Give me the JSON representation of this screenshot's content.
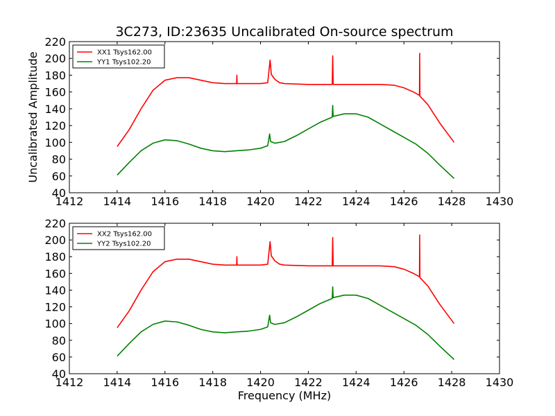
{
  "figure": {
    "title": "3C273, ID:23635 Uncalibrated On-source spectrum",
    "ylabel": "Uncalibrated Amplitude",
    "xlabel": "Frequency (MHz)"
  },
  "colors": {
    "xx": "#ff0000",
    "yy": "#008000",
    "axes": "#000000",
    "background": "#ffffff"
  },
  "chart_data": [
    {
      "type": "line",
      "xlim": [
        1412,
        1430
      ],
      "ylim": [
        40,
        220
      ],
      "xticks": [
        1412,
        1414,
        1416,
        1418,
        1420,
        1422,
        1424,
        1426,
        1428,
        1430
      ],
      "yticks": [
        40,
        60,
        80,
        100,
        120,
        140,
        160,
        180,
        200,
        220
      ],
      "grid": false,
      "legend_position": "top-left",
      "series": [
        {
          "name": "XX1 Tsys162.00",
          "color": "#ff0000",
          "points": [
            [
              1414.0,
              95
            ],
            [
              1414.5,
              115
            ],
            [
              1415.0,
              140
            ],
            [
              1415.5,
              162
            ],
            [
              1416.0,
              174
            ],
            [
              1416.5,
              177
            ],
            [
              1417.0,
              177
            ],
            [
              1417.5,
              174
            ],
            [
              1418.0,
              171
            ],
            [
              1418.5,
              170
            ],
            [
              1419.0,
              170
            ],
            [
              1419.01,
              180
            ],
            [
              1419.02,
              170
            ],
            [
              1419.5,
              170
            ],
            [
              1420.0,
              170
            ],
            [
              1420.3,
              171
            ],
            [
              1420.4,
              198
            ],
            [
              1420.45,
              181
            ],
            [
              1420.6,
              175
            ],
            [
              1420.8,
              171
            ],
            [
              1421.0,
              170
            ],
            [
              1422.0,
              169
            ],
            [
              1423.0,
              169
            ],
            [
              1423.02,
              203
            ],
            [
              1423.04,
              169
            ],
            [
              1424.0,
              169
            ],
            [
              1425.0,
              169
            ],
            [
              1425.6,
              168
            ],
            [
              1426.0,
              165
            ],
            [
              1426.4,
              160
            ],
            [
              1426.65,
              156
            ],
            [
              1426.66,
              206
            ],
            [
              1426.67,
              155
            ],
            [
              1427.0,
              145
            ],
            [
              1427.5,
              123
            ],
            [
              1428.1,
              100
            ]
          ]
        },
        {
          "name": "YY1 Tsys102.20",
          "color": "#008000",
          "points": [
            [
              1414.0,
              61
            ],
            [
              1414.5,
              76
            ],
            [
              1415.0,
              90
            ],
            [
              1415.5,
              99
            ],
            [
              1416.0,
              103
            ],
            [
              1416.5,
              102
            ],
            [
              1417.0,
              98
            ],
            [
              1417.5,
              93
            ],
            [
              1418.0,
              90
            ],
            [
              1418.5,
              89
            ],
            [
              1419.0,
              90
            ],
            [
              1419.5,
              91
            ],
            [
              1420.0,
              93
            ],
            [
              1420.3,
              96
            ],
            [
              1420.38,
              110
            ],
            [
              1420.42,
              101
            ],
            [
              1420.6,
              99
            ],
            [
              1421.0,
              101
            ],
            [
              1421.5,
              108
            ],
            [
              1422.0,
              116
            ],
            [
              1422.5,
              124
            ],
            [
              1423.0,
              130
            ],
            [
              1423.02,
              144
            ],
            [
              1423.04,
              131
            ],
            [
              1423.5,
              134
            ],
            [
              1424.0,
              134
            ],
            [
              1424.5,
              130
            ],
            [
              1425.0,
              122
            ],
            [
              1425.5,
              114
            ],
            [
              1426.0,
              106
            ],
            [
              1426.5,
              98
            ],
            [
              1427.0,
              87
            ],
            [
              1427.5,
              73
            ],
            [
              1428.1,
              57
            ]
          ]
        }
      ]
    },
    {
      "type": "line",
      "xlim": [
        1412,
        1430
      ],
      "ylim": [
        40,
        220
      ],
      "xticks": [
        1412,
        1414,
        1416,
        1418,
        1420,
        1422,
        1424,
        1426,
        1428,
        1430
      ],
      "yticks": [
        40,
        60,
        80,
        100,
        120,
        140,
        160,
        180,
        200,
        220
      ],
      "xlabel": "Frequency (MHz)",
      "grid": false,
      "legend_position": "top-left",
      "series": [
        {
          "name": "XX2 Tsys162.00",
          "color": "#ff0000",
          "points": [
            [
              1414.0,
              95
            ],
            [
              1414.5,
              115
            ],
            [
              1415.0,
              140
            ],
            [
              1415.5,
              162
            ],
            [
              1416.0,
              174
            ],
            [
              1416.5,
              177
            ],
            [
              1417.0,
              177
            ],
            [
              1417.5,
              174
            ],
            [
              1418.0,
              171
            ],
            [
              1418.5,
              170
            ],
            [
              1419.0,
              170
            ],
            [
              1419.01,
              180
            ],
            [
              1419.02,
              170
            ],
            [
              1419.5,
              170
            ],
            [
              1420.0,
              170
            ],
            [
              1420.3,
              171
            ],
            [
              1420.4,
              198
            ],
            [
              1420.45,
              181
            ],
            [
              1420.6,
              175
            ],
            [
              1420.8,
              171
            ],
            [
              1421.0,
              170
            ],
            [
              1422.0,
              169
            ],
            [
              1423.0,
              169
            ],
            [
              1423.02,
              203
            ],
            [
              1423.04,
              169
            ],
            [
              1424.0,
              169
            ],
            [
              1425.0,
              169
            ],
            [
              1425.6,
              168
            ],
            [
              1426.0,
              165
            ],
            [
              1426.4,
              160
            ],
            [
              1426.65,
              156
            ],
            [
              1426.66,
              206
            ],
            [
              1426.67,
              155
            ],
            [
              1427.0,
              145
            ],
            [
              1427.5,
              123
            ],
            [
              1428.1,
              100
            ]
          ]
        },
        {
          "name": "YY2 Tsys102.20",
          "color": "#008000",
          "points": [
            [
              1414.0,
              61
            ],
            [
              1414.5,
              76
            ],
            [
              1415.0,
              90
            ],
            [
              1415.5,
              99
            ],
            [
              1416.0,
              103
            ],
            [
              1416.5,
              102
            ],
            [
              1417.0,
              98
            ],
            [
              1417.5,
              93
            ],
            [
              1418.0,
              90
            ],
            [
              1418.5,
              89
            ],
            [
              1419.0,
              90
            ],
            [
              1419.5,
              91
            ],
            [
              1420.0,
              93
            ],
            [
              1420.3,
              96
            ],
            [
              1420.38,
              110
            ],
            [
              1420.42,
              101
            ],
            [
              1420.6,
              99
            ],
            [
              1421.0,
              101
            ],
            [
              1421.5,
              108
            ],
            [
              1422.0,
              116
            ],
            [
              1422.5,
              124
            ],
            [
              1423.0,
              130
            ],
            [
              1423.02,
              144
            ],
            [
              1423.04,
              131
            ],
            [
              1423.5,
              134
            ],
            [
              1424.0,
              134
            ],
            [
              1424.5,
              130
            ],
            [
              1425.0,
              122
            ],
            [
              1425.5,
              114
            ],
            [
              1426.0,
              106
            ],
            [
              1426.5,
              98
            ],
            [
              1427.0,
              87
            ],
            [
              1427.5,
              73
            ],
            [
              1428.1,
              57
            ]
          ]
        }
      ]
    }
  ]
}
